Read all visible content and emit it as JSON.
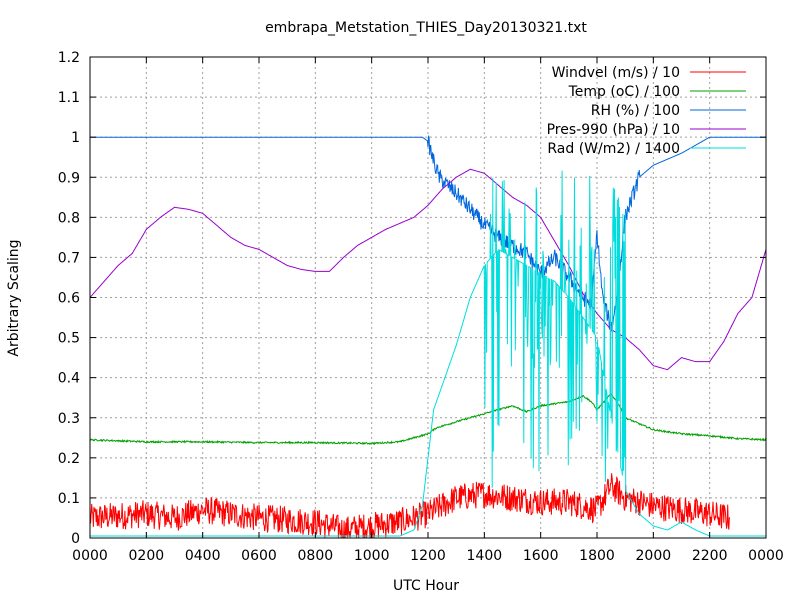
{
  "chart_data": {
    "type": "line",
    "title": "embrapa_Metstation_THIES_Day20130321.txt",
    "xlabel": "UTC Hour",
    "ylabel": "Arbitrary Scaling",
    "xlim": [
      0,
      2400
    ],
    "ylim": [
      0,
      1.2
    ],
    "xticks": [
      "0000",
      "0200",
      "0400",
      "0600",
      "0800",
      "1000",
      "1200",
      "1400",
      "1600",
      "1800",
      "2000",
      "2200",
      "0000"
    ],
    "yticks": [
      "0",
      "0.1",
      "0.2",
      "0.3",
      "0.4",
      "0.5",
      "0.6",
      "0.7",
      "0.8",
      "0.9",
      "1",
      "1.1",
      "1.2"
    ],
    "grid": true,
    "legend": "top-right",
    "series": [
      {
        "name": "Windvel (m/s) / 10",
        "color": "#ff0000",
        "noise": 0.035,
        "points": [
          [
            0,
            0.05
          ],
          [
            200,
            0.06
          ],
          [
            300,
            0.05
          ],
          [
            400,
            0.07
          ],
          [
            600,
            0.05
          ],
          [
            800,
            0.04
          ],
          [
            900,
            0.02
          ],
          [
            1000,
            0.03
          ],
          [
            1100,
            0.04
          ],
          [
            1200,
            0.06
          ],
          [
            1300,
            0.1
          ],
          [
            1400,
            0.11
          ],
          [
            1500,
            0.1
          ],
          [
            1600,
            0.09
          ],
          [
            1700,
            0.09
          ],
          [
            1800,
            0.07
          ],
          [
            1850,
            0.13
          ],
          [
            1900,
            0.1
          ],
          [
            2000,
            0.08
          ],
          [
            2100,
            0.07
          ],
          [
            2200,
            0.06
          ],
          [
            2270,
            0.05
          ]
        ]
      },
      {
        "name": "Temp (oC) / 100",
        "color": "#00a000",
        "noise": 0.002,
        "points": [
          [
            0,
            0.245
          ],
          [
            200,
            0.24
          ],
          [
            400,
            0.24
          ],
          [
            600,
            0.238
          ],
          [
            800,
            0.238
          ],
          [
            1000,
            0.236
          ],
          [
            1100,
            0.24
          ],
          [
            1200,
            0.26
          ],
          [
            1230,
            0.275
          ],
          [
            1300,
            0.29
          ],
          [
            1400,
            0.31
          ],
          [
            1450,
            0.32
          ],
          [
            1500,
            0.33
          ],
          [
            1550,
            0.315
          ],
          [
            1600,
            0.33
          ],
          [
            1700,
            0.34
          ],
          [
            1750,
            0.355
          ],
          [
            1780,
            0.34
          ],
          [
            1800,
            0.32
          ],
          [
            1850,
            0.36
          ],
          [
            1880,
            0.33
          ],
          [
            1900,
            0.3
          ],
          [
            2000,
            0.27
          ],
          [
            2100,
            0.26
          ],
          [
            2200,
            0.255
          ],
          [
            2300,
            0.248
          ],
          [
            2400,
            0.245
          ]
        ]
      },
      {
        "name": "RH (%) / 100",
        "color": "#0066dd",
        "noise": 0.02,
        "points": [
          [
            0,
            1.0
          ],
          [
            1180,
            1.0
          ],
          [
            1200,
            0.99
          ],
          [
            1220,
            0.94
          ],
          [
            1240,
            0.9
          ],
          [
            1300,
            0.86
          ],
          [
            1350,
            0.82
          ],
          [
            1400,
            0.78
          ],
          [
            1450,
            0.75
          ],
          [
            1500,
            0.73
          ],
          [
            1550,
            0.71
          ],
          [
            1600,
            0.66
          ],
          [
            1650,
            0.7
          ],
          [
            1700,
            0.65
          ],
          [
            1750,
            0.6
          ],
          [
            1780,
            0.58
          ],
          [
            1800,
            0.76
          ],
          [
            1820,
            0.6
          ],
          [
            1840,
            0.55
          ],
          [
            1850,
            0.52
          ],
          [
            1870,
            0.6
          ],
          [
            1900,
            0.8
          ],
          [
            1950,
            0.9
          ],
          [
            2000,
            0.93
          ],
          [
            2100,
            0.96
          ],
          [
            2150,
            0.98
          ],
          [
            2200,
            1.0
          ],
          [
            2400,
            1.0
          ]
        ],
        "noise_range": [
          1200,
          1950
        ]
      },
      {
        "name": "Pres-990 (hPa) / 10",
        "color": "#9900cc",
        "noise": 0,
        "points": [
          [
            0,
            0.6
          ],
          [
            50,
            0.64
          ],
          [
            100,
            0.68
          ],
          [
            150,
            0.71
          ],
          [
            200,
            0.77
          ],
          [
            250,
            0.8
          ],
          [
            300,
            0.825
          ],
          [
            350,
            0.82
          ],
          [
            400,
            0.81
          ],
          [
            450,
            0.78
          ],
          [
            500,
            0.75
          ],
          [
            550,
            0.73
          ],
          [
            600,
            0.72
          ],
          [
            650,
            0.7
          ],
          [
            700,
            0.68
          ],
          [
            750,
            0.67
          ],
          [
            800,
            0.665
          ],
          [
            850,
            0.665
          ],
          [
            900,
            0.7
          ],
          [
            950,
            0.73
          ],
          [
            1000,
            0.75
          ],
          [
            1050,
            0.77
          ],
          [
            1100,
            0.785
          ],
          [
            1150,
            0.8
          ],
          [
            1200,
            0.83
          ],
          [
            1250,
            0.87
          ],
          [
            1300,
            0.9
          ],
          [
            1350,
            0.92
          ],
          [
            1400,
            0.91
          ],
          [
            1450,
            0.88
          ],
          [
            1500,
            0.85
          ],
          [
            1550,
            0.83
          ],
          [
            1600,
            0.8
          ],
          [
            1650,
            0.74
          ],
          [
            1700,
            0.68
          ],
          [
            1750,
            0.61
          ],
          [
            1800,
            0.56
          ],
          [
            1850,
            0.52
          ],
          [
            1900,
            0.5
          ],
          [
            1950,
            0.47
          ],
          [
            2000,
            0.43
          ],
          [
            2050,
            0.42
          ],
          [
            2100,
            0.45
          ],
          [
            2150,
            0.44
          ],
          [
            2200,
            0.44
          ],
          [
            2250,
            0.49
          ],
          [
            2300,
            0.56
          ],
          [
            2350,
            0.6
          ],
          [
            2400,
            0.72
          ]
        ]
      },
      {
        "name": "Rad (W/m2) / 1400",
        "color": "#00dddd",
        "noise": 0,
        "points": [
          [
            0,
            0.005
          ],
          [
            1100,
            0.005
          ],
          [
            1150,
            0.02
          ],
          [
            1180,
            0.08
          ],
          [
            1200,
            0.2
          ],
          [
            1220,
            0.32
          ],
          [
            1250,
            0.38
          ],
          [
            1300,
            0.48
          ],
          [
            1350,
            0.6
          ],
          [
            1400,
            0.68
          ],
          [
            1450,
            0.72
          ],
          [
            1500,
            0.7
          ],
          [
            1550,
            0.68
          ],
          [
            1600,
            0.66
          ],
          [
            1650,
            0.64
          ],
          [
            1700,
            0.6
          ],
          [
            1750,
            0.55
          ],
          [
            1800,
            0.5
          ],
          [
            1850,
            0.3
          ],
          [
            1900,
            0.12
          ],
          [
            1950,
            0.06
          ],
          [
            2000,
            0.03
          ],
          [
            2050,
            0.02
          ],
          [
            2100,
            0.04
          ],
          [
            2150,
            0.02
          ],
          [
            2200,
            0.005
          ],
          [
            2400,
            0.005
          ]
        ],
        "spikes": {
          "range": [
            1400,
            1900
          ],
          "low": 0.12,
          "high": 0.92
        }
      }
    ]
  }
}
